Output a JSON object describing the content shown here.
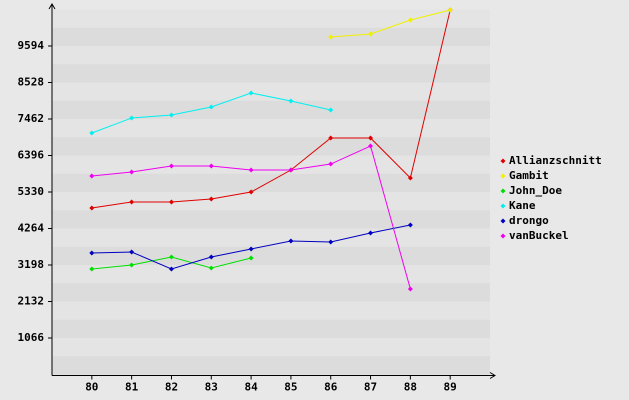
{
  "chart_data": {
    "type": "line",
    "x": [
      80,
      81,
      82,
      83,
      84,
      85,
      86,
      87,
      88,
      89
    ],
    "xlim": [
      79,
      90
    ],
    "xticks": [
      80,
      81,
      82,
      83,
      84,
      85,
      86,
      87,
      88,
      89
    ],
    "ylim": [
      0,
      10660
    ],
    "yticks": [
      1066,
      2132,
      3198,
      4264,
      5330,
      6396,
      7462,
      8528,
      9594
    ],
    "series": [
      {
        "name": "Allianzschnitt",
        "color": "#e00000",
        "values": [
          4863,
          5038,
          5038,
          5126,
          5330,
          5972,
          6907,
          6907,
          5739,
          10645
        ]
      },
      {
        "name": "Gambit",
        "color": "#f0f000",
        "values": [
          null,
          null,
          null,
          null,
          null,
          null,
          9857,
          9945,
          10353,
          10645
        ]
      },
      {
        "name": "John_Doe",
        "color": "#00e000",
        "values": [
          3081,
          3198,
          3432,
          3110,
          3403,
          null,
          null,
          null,
          null,
          null
        ]
      },
      {
        "name": "Kane",
        "color": "#00f0f0",
        "values": [
          7053,
          7491,
          7579,
          7813,
          8222,
          7988,
          7725,
          null,
          null,
          null
        ]
      },
      {
        "name": "drongo",
        "color": "#0000c0",
        "values": [
          3548,
          3578,
          3081,
          3432,
          3665,
          3899,
          3870,
          4133,
          4366,
          null
        ]
      },
      {
        "name": "vanBuckel",
        "color": "#f000f0",
        "values": [
          5797,
          5914,
          6089,
          6089,
          5972,
          5972,
          6147,
          6673,
          2497,
          null
        ]
      }
    ]
  }
}
